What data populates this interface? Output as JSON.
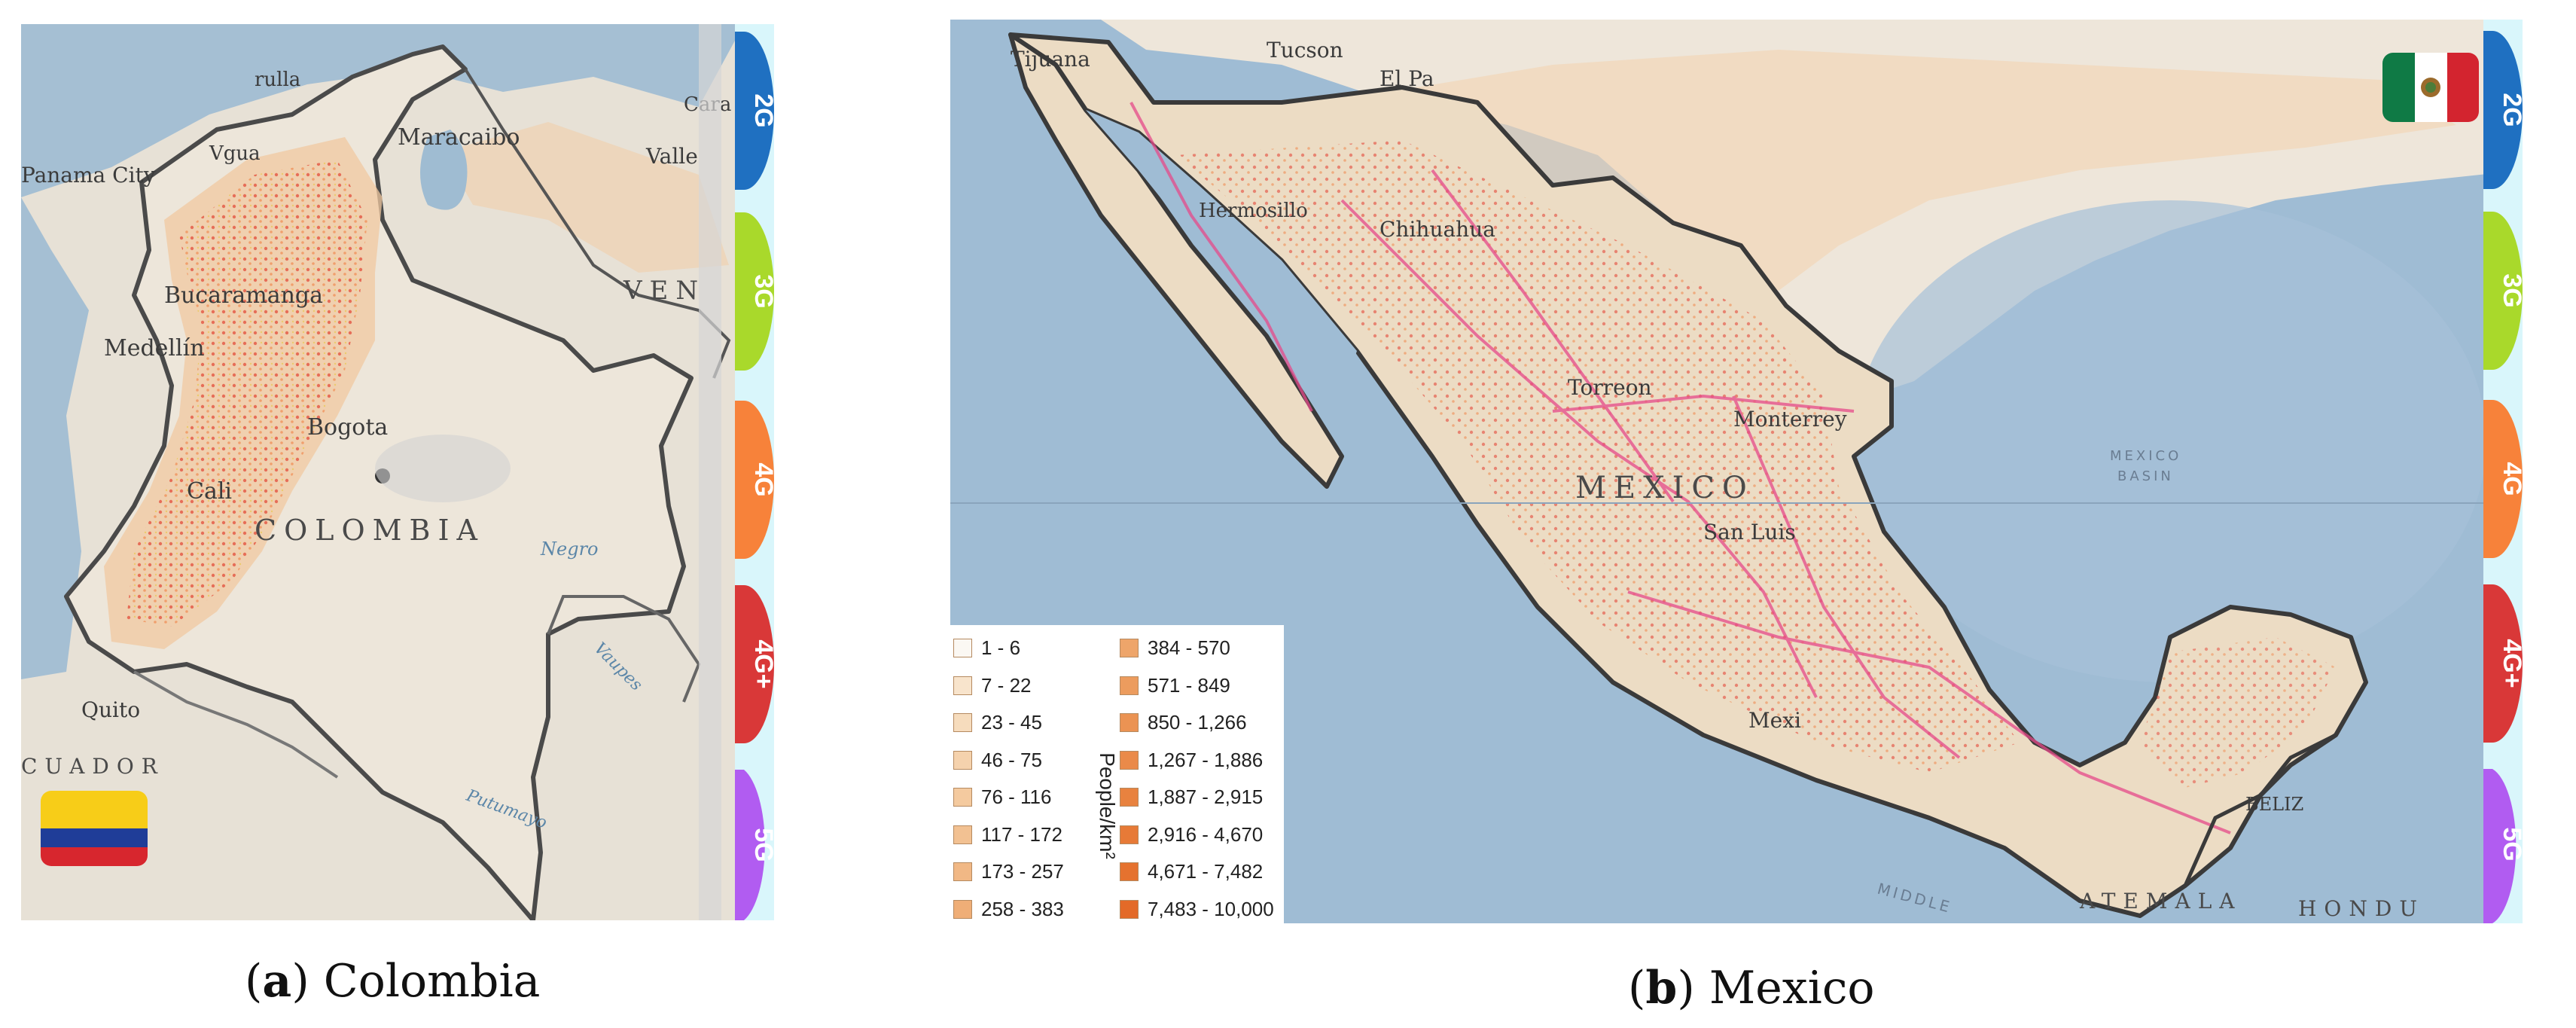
{
  "figure": {
    "panel_a": {
      "caption_letter": "a",
      "caption_text": "Colombia",
      "place_labels": {
        "city_1": "Maracaibo",
        "city_2": "Bucaramanga",
        "city_3": "Medellín",
        "city_4": "Bogota",
        "city_5": "Cali",
        "city_6": "Quito",
        "city_7": "Panama City",
        "city_8": "Valle",
        "city_9": "Cara",
        "city_10": "Vgua",
        "city_11": "rulla",
        "country_1": "COLOMBIA",
        "country_2": "VEN",
        "country_3": "CUADOR",
        "river_1": "Negro",
        "river_2": "Vaupes",
        "river_3": "Putumayo"
      },
      "flag": "colombia-flag",
      "network_tabs": [
        "2G",
        "3G",
        "4G",
        "4G+",
        "5G"
      ]
    },
    "panel_b": {
      "caption_letter": "b",
      "caption_text": "Mexico",
      "place_labels": {
        "city_1": "Tijuana",
        "city_2": "Tucson",
        "city_3": "El Pa",
        "city_4": "Chihuahua",
        "city_5": "Hermosillo",
        "city_6": "Torreon",
        "city_7": "Monterrey",
        "city_8": "San Luis",
        "city_9": "Mexi",
        "city_10": "BELIZ",
        "country_1": "MEXICO",
        "country_2": "ATEMALA",
        "country_3": "HONDU",
        "sea_1": "MEXICO",
        "sea_2": "BASIN",
        "trench": "MIDDLE"
      },
      "flag": "mexico-flag",
      "network_tabs": [
        "2G",
        "3G",
        "4G",
        "4G+",
        "5G"
      ]
    },
    "legend": {
      "unit": "People/km²",
      "items": [
        {
          "label": "1 - 6",
          "color": "#fbf8f3"
        },
        {
          "label": "7 - 22",
          "color": "#f8e4cc"
        },
        {
          "label": "23 - 45",
          "color": "#f6dcbd"
        },
        {
          "label": "46 - 75",
          "color": "#f5d2ad"
        },
        {
          "label": "76 - 116",
          "color": "#f4ca9f"
        },
        {
          "label": "117 - 172",
          "color": "#f2c192"
        },
        {
          "label": "173 - 257",
          "color": "#f1b885"
        },
        {
          "label": "258 - 383",
          "color": "#efae77"
        },
        {
          "label": "384 - 570",
          "color": "#eea56a"
        },
        {
          "label": "571 - 849",
          "color": "#ec9c5e"
        },
        {
          "label": "850 - 1,266",
          "color": "#eb9353"
        },
        {
          "label": "1,267 - 1,886",
          "color": "#ea8a49"
        },
        {
          "label": "1,887 - 2,915",
          "color": "#e8823f"
        },
        {
          "label": "2,916 - 4,670",
          "color": "#e77a37"
        },
        {
          "label": "4,671 - 7,482",
          "color": "#e5722f"
        },
        {
          "label": "7,483 - 10,000",
          "color": "#e36a28"
        }
      ]
    },
    "colors": {
      "tab_2g": "#1f70c1",
      "tab_3g": "#a9d92b",
      "tab_4g": "#f7823a",
      "tab_4gplus": "#d93838",
      "tab_5g": "#b15cf1",
      "border": "#3f3f3f",
      "ocean": "#a3bfd5",
      "land": "#eae4da",
      "population": "#f1c9a2",
      "coverage": "#e0342a"
    }
  }
}
